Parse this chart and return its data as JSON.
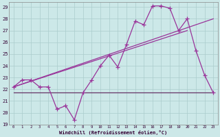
{
  "xlabel": "Windchill (Refroidissement éolien,°C)",
  "xlim": [
    -0.5,
    23.5
  ],
  "ylim": [
    19,
    29.4
  ],
  "yticks": [
    19,
    20,
    21,
    22,
    23,
    24,
    25,
    26,
    27,
    28,
    29
  ],
  "xticks": [
    0,
    1,
    2,
    3,
    4,
    5,
    6,
    7,
    8,
    9,
    10,
    11,
    12,
    13,
    14,
    15,
    16,
    17,
    18,
    19,
    20,
    21,
    22,
    23
  ],
  "background_color": "#cce8e8",
  "grid_color": "#aacccc",
  "line_color": "#993399",
  "flat_line_color": "#663366",
  "series": {
    "jagged": {
      "x": [
        0,
        1,
        2,
        3,
        4,
        5,
        6,
        7,
        8,
        9,
        10,
        11,
        12,
        13,
        14,
        15,
        16,
        17,
        18,
        19,
        20,
        21,
        22,
        23
      ],
      "y": [
        22.2,
        22.8,
        22.8,
        22.2,
        22.2,
        20.3,
        20.6,
        19.4,
        21.7,
        22.8,
        24.0,
        24.9,
        23.9,
        25.8,
        27.8,
        27.5,
        29.1,
        29.1,
        28.9,
        27.0,
        28.0,
        25.3,
        23.2,
        21.7
      ]
    },
    "linear_upper": {
      "x": [
        0,
        20
      ],
      "y": [
        22.2,
        27.0
      ]
    },
    "linear_lower": {
      "x": [
        0,
        23
      ],
      "y": [
        22.2,
        28.0
      ]
    },
    "flat": {
      "x": [
        0,
        23
      ],
      "y": [
        21.7,
        21.7
      ]
    }
  }
}
